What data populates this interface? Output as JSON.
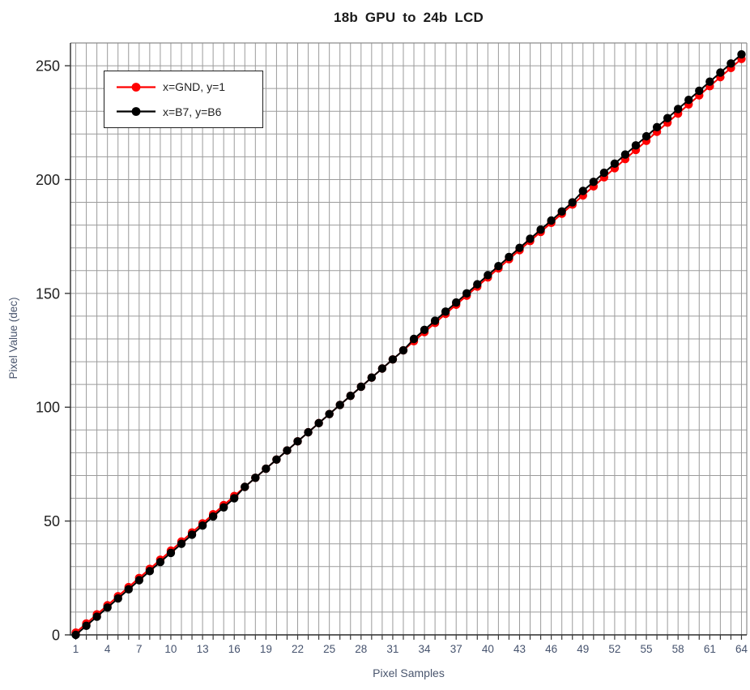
{
  "chart_data": {
    "type": "line",
    "title": "18b GPU to 24b LCD",
    "xlabel": "Pixel Samples",
    "ylabel": "Pixel Value (dec)",
    "xlim": [
      0.5,
      64.5
    ],
    "ylim": [
      0,
      260
    ],
    "x_minor_step": 1,
    "y_minor_step": 10,
    "y_ticks": [
      0,
      50,
      100,
      150,
      200,
      250
    ],
    "x_tick_labels": [
      1,
      4,
      7,
      10,
      13,
      16,
      19,
      22,
      25,
      28,
      31,
      34,
      37,
      40,
      43,
      46,
      49,
      52,
      55,
      58,
      61,
      64
    ],
    "grid": "on (minor vertical line per sample, horizontal every 10)",
    "legend_position": "top-left inside",
    "x": [
      1,
      2,
      3,
      4,
      5,
      6,
      7,
      8,
      9,
      10,
      11,
      12,
      13,
      14,
      15,
      16,
      17,
      18,
      19,
      20,
      21,
      22,
      23,
      24,
      25,
      26,
      27,
      28,
      29,
      30,
      31,
      32,
      33,
      34,
      35,
      36,
      37,
      38,
      39,
      40,
      41,
      42,
      43,
      44,
      45,
      46,
      47,
      48,
      49,
      50,
      51,
      52,
      53,
      54,
      55,
      56,
      57,
      58,
      59,
      60,
      61,
      62,
      63,
      64
    ],
    "series": [
      {
        "name": "x=GND, y=1",
        "color": "#ff0000",
        "marker": "circle",
        "values": [
          1,
          5,
          9,
          13,
          17,
          21,
          25,
          29,
          33,
          37,
          41,
          45,
          49,
          53,
          57,
          61,
          65,
          69,
          73,
          77,
          81,
          85,
          89,
          93,
          97,
          101,
          105,
          109,
          113,
          117,
          121,
          125,
          129,
          133,
          137,
          141,
          145,
          149,
          153,
          157,
          161,
          165,
          169,
          173,
          177,
          181,
          185,
          189,
          193,
          197,
          201,
          205,
          209,
          213,
          217,
          221,
          225,
          229,
          233,
          237,
          241,
          245,
          249,
          253
        ]
      },
      {
        "name": "x=B7, y=B6",
        "color": "#000000",
        "marker": "circle",
        "values": [
          0,
          4,
          8,
          12,
          16,
          20,
          24,
          28,
          32,
          36,
          40,
          44,
          48,
          52,
          56,
          60,
          65,
          69,
          73,
          77,
          81,
          85,
          89,
          93,
          97,
          101,
          105,
          109,
          113,
          117,
          121,
          125,
          130,
          134,
          138,
          142,
          146,
          150,
          154,
          158,
          162,
          166,
          170,
          174,
          178,
          182,
          186,
          190,
          195,
          199,
          203,
          207,
          211,
          215,
          219,
          223,
          227,
          231,
          235,
          239,
          243,
          247,
          251,
          255
        ]
      }
    ]
  },
  "colors": {
    "gridline": "#9b9b9b",
    "plot_border": "#8c8c8c",
    "axis_line": "#2b2b2b",
    "tick_mark": "#3a3a3a",
    "y_tick_label": "#212121",
    "x_tick_label": "#46536e",
    "axis_title": "#4a566e",
    "title": "#1a1a1a",
    "background": "#ffffff"
  }
}
